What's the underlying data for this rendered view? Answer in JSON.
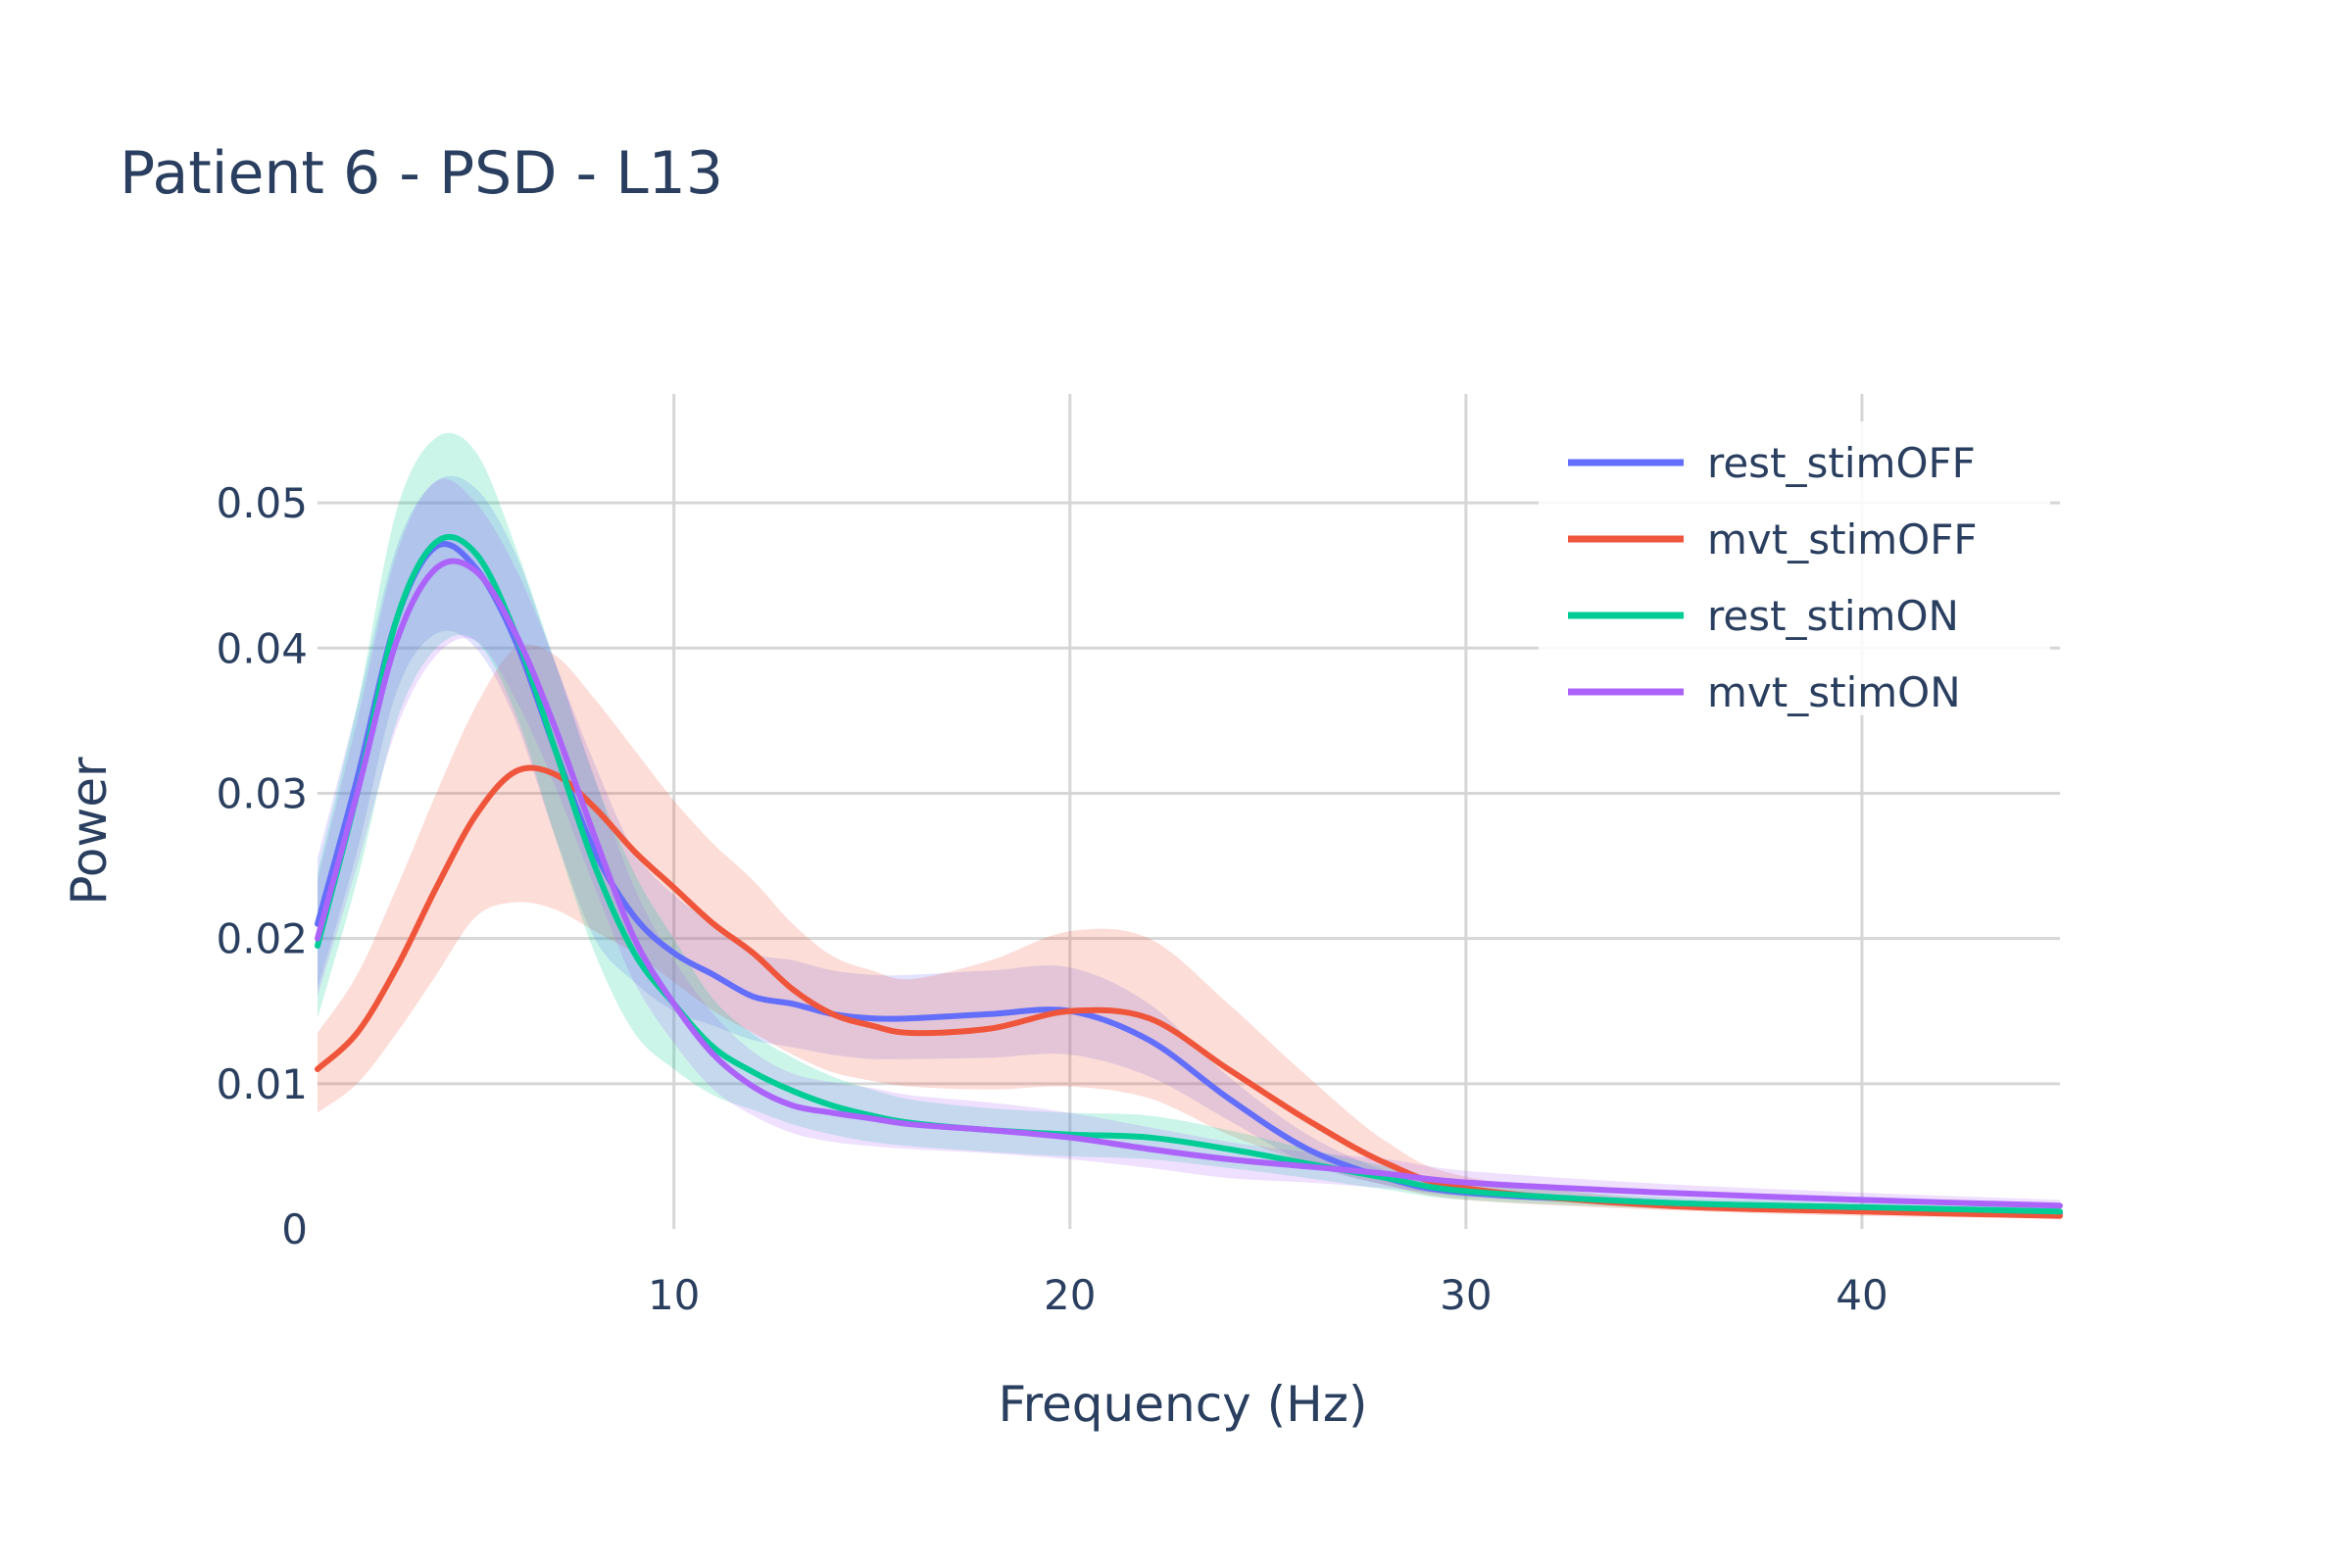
{
  "chart_data": {
    "type": "line",
    "title": "Patient 6 - PSD - L13",
    "xlabel": "Frequency (Hz)",
    "ylabel": "Power",
    "xlim": [
      1,
      45
    ],
    "ylim": [
      0,
      0.0575
    ],
    "x_ticks": [
      10,
      20,
      30,
      40
    ],
    "x_tick_labels": [
      "10",
      "20",
      "30",
      "40"
    ],
    "y_ticks": [
      0,
      0.01,
      0.02,
      0.03,
      0.04,
      0.05
    ],
    "y_tick_labels": [
      "0",
      "0.01",
      "0.02",
      "0.03",
      "0.04",
      "0.05"
    ],
    "grid": true,
    "legend_position": "top-right",
    "x": [
      1,
      2,
      3,
      4,
      5,
      6,
      7,
      8,
      9,
      10,
      11,
      12,
      13,
      14,
      15,
      16,
      18,
      20,
      22,
      24,
      26,
      28,
      30,
      35,
      40,
      45
    ],
    "series": [
      {
        "name": "rest_stimOFF",
        "color": "#636efa",
        "fill": "rgba(99,110,250,0.2)",
        "values": [
          0.021,
          0.031,
          0.042,
          0.047,
          0.0455,
          0.0405,
          0.033,
          0.026,
          0.0215,
          0.019,
          0.0175,
          0.016,
          0.0155,
          0.0148,
          0.0145,
          0.0145,
          0.0148,
          0.015,
          0.013,
          0.009,
          0.0055,
          0.0035,
          0.0025,
          0.0018,
          0.0014,
          0.0011
        ],
        "lower": [
          0.0165,
          0.026,
          0.037,
          0.041,
          0.04,
          0.035,
          0.027,
          0.02,
          0.017,
          0.015,
          0.014,
          0.013,
          0.0125,
          0.012,
          0.0117,
          0.0117,
          0.0118,
          0.012,
          0.0105,
          0.0075,
          0.0045,
          0.003,
          0.0022,
          0.0016,
          0.0012,
          0.0009
        ],
        "upper": [
          0.0255,
          0.036,
          0.047,
          0.0515,
          0.051,
          0.0465,
          0.039,
          0.032,
          0.026,
          0.023,
          0.021,
          0.019,
          0.0185,
          0.0178,
          0.0175,
          0.0175,
          0.0178,
          0.018,
          0.0155,
          0.0105,
          0.0065,
          0.004,
          0.0028,
          0.002,
          0.0016,
          0.0013
        ]
      },
      {
        "name": "mvt_stimOFF",
        "color": "#ef553b",
        "fill": "rgba(239,85,59,0.2)",
        "values": [
          0.011,
          0.0135,
          0.018,
          0.0235,
          0.0285,
          0.0315,
          0.0313,
          0.029,
          0.026,
          0.0235,
          0.021,
          0.019,
          0.0165,
          0.0148,
          0.014,
          0.0135,
          0.0138,
          0.015,
          0.0145,
          0.011,
          0.0075,
          0.0045,
          0.0028,
          0.0016,
          0.0012,
          0.0009
        ],
        "lower": [
          0.008,
          0.01,
          0.0135,
          0.0175,
          0.0215,
          0.0225,
          0.022,
          0.0205,
          0.019,
          0.017,
          0.015,
          0.0135,
          0.012,
          0.0108,
          0.0102,
          0.0098,
          0.0096,
          0.0098,
          0.009,
          0.0065,
          0.0045,
          0.003,
          0.002,
          0.0013,
          0.0009,
          0.0007
        ],
        "upper": [
          0.0135,
          0.0175,
          0.0235,
          0.03,
          0.036,
          0.04,
          0.0395,
          0.0365,
          0.033,
          0.0295,
          0.0265,
          0.024,
          0.021,
          0.0188,
          0.0178,
          0.0172,
          0.0185,
          0.0205,
          0.02,
          0.0155,
          0.0105,
          0.006,
          0.0036,
          0.002,
          0.0015,
          0.0011
        ]
      },
      {
        "name": "rest_stimON",
        "color": "#00cc96",
        "fill": "rgba(0,204,150,0.2)",
        "values": [
          0.0195,
          0.03,
          0.042,
          0.0473,
          0.0465,
          0.041,
          0.033,
          0.025,
          0.019,
          0.0155,
          0.0125,
          0.0108,
          0.0095,
          0.0085,
          0.0078,
          0.0073,
          0.0068,
          0.0065,
          0.0063,
          0.0055,
          0.0045,
          0.0035,
          0.0026,
          0.0018,
          0.0015,
          0.0012
        ],
        "lower": [
          0.0145,
          0.024,
          0.035,
          0.04,
          0.0405,
          0.0355,
          0.027,
          0.019,
          0.0135,
          0.011,
          0.0092,
          0.0082,
          0.0072,
          0.0065,
          0.006,
          0.0057,
          0.0053,
          0.005,
          0.0048,
          0.0042,
          0.0035,
          0.0027,
          0.002,
          0.0014,
          0.0011,
          0.0009
        ],
        "upper": [
          0.0245,
          0.036,
          0.0495,
          0.0545,
          0.0535,
          0.047,
          0.039,
          0.031,
          0.0245,
          0.02,
          0.0158,
          0.0134,
          0.0118,
          0.0105,
          0.0096,
          0.0089,
          0.0083,
          0.008,
          0.0078,
          0.0068,
          0.0055,
          0.0043,
          0.0032,
          0.0022,
          0.0019,
          0.0015
        ]
      },
      {
        "name": "mvt_stimON",
        "color": "#ab63fa",
        "fill": "rgba(171,99,250,0.2)",
        "values": [
          0.02,
          0.03,
          0.0405,
          0.0455,
          0.0453,
          0.041,
          0.0345,
          0.027,
          0.02,
          0.0155,
          0.012,
          0.0098,
          0.0085,
          0.008,
          0.0076,
          0.0072,
          0.0068,
          0.0063,
          0.0055,
          0.0048,
          0.0043,
          0.0038,
          0.0032,
          0.0025,
          0.002,
          0.0016
        ],
        "lower": [
          0.016,
          0.025,
          0.0345,
          0.0395,
          0.0405,
          0.0365,
          0.0305,
          0.0235,
          0.017,
          0.0128,
          0.0096,
          0.0078,
          0.0066,
          0.006,
          0.0057,
          0.0055,
          0.0052,
          0.0048,
          0.0042,
          0.0035,
          0.0032,
          0.0028,
          0.0024,
          0.0019,
          0.0015,
          0.0012
        ],
        "upper": [
          0.024,
          0.035,
          0.0465,
          0.0515,
          0.05,
          0.0455,
          0.039,
          0.031,
          0.0235,
          0.0185,
          0.0148,
          0.0122,
          0.0107,
          0.0101,
          0.0097,
          0.0092,
          0.0087,
          0.008,
          0.007,
          0.006,
          0.0053,
          0.0048,
          0.004,
          0.0031,
          0.0025,
          0.002
        ]
      }
    ]
  }
}
